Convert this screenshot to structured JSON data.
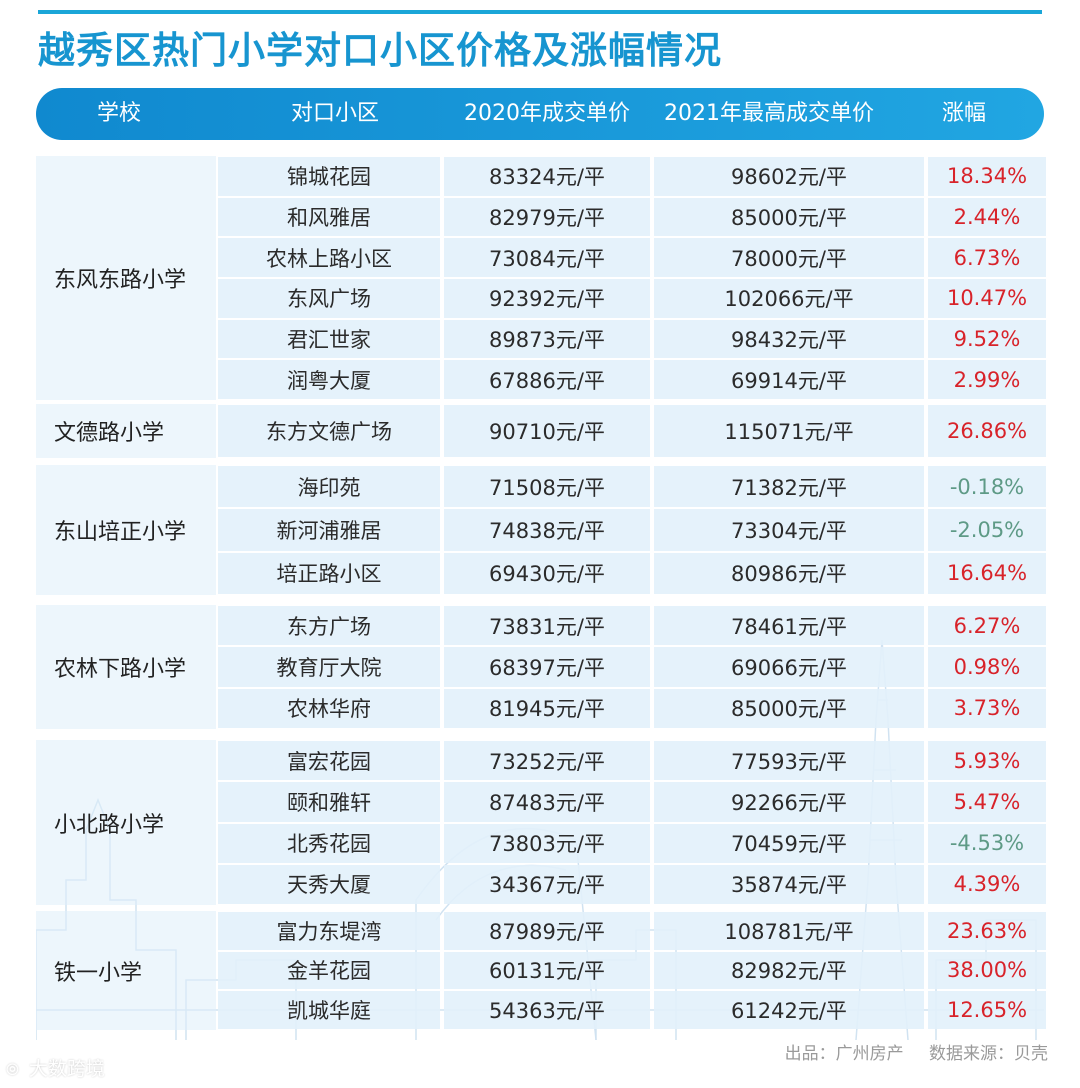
{
  "title": "越秀区热门小学对口小区价格及涨幅情况",
  "chart_data": {
    "type": "table",
    "columns": [
      "学校",
      "对口小区",
      "2020年成交单价",
      "2021年最高成交单价",
      "涨幅"
    ],
    "groups": [
      {
        "school": "东风东路小学",
        "rows": [
          {
            "estate": "锦城花园",
            "p2020": "83324元/平",
            "p2021": "98602元/平",
            "change": "18.34%"
          },
          {
            "estate": "和风雅居",
            "p2020": "82979元/平",
            "p2021": "85000元/平",
            "change": "2.44%"
          },
          {
            "estate": "农林上路小区",
            "p2020": "73084元/平",
            "p2021": "78000元/平",
            "change": "6.73%"
          },
          {
            "estate": "东风广场",
            "p2020": "92392元/平",
            "p2021": "102066元/平",
            "change": "10.47%"
          },
          {
            "estate": "君汇世家",
            "p2020": "89873元/平",
            "p2021": "98432元/平",
            "change": "9.52%"
          },
          {
            "estate": "润粤大厦",
            "p2020": "67886元/平",
            "p2021": "69914元/平",
            "change": "2.99%"
          }
        ]
      },
      {
        "school": "文德路小学",
        "rows": [
          {
            "estate": "东方文德广场",
            "p2020": "90710元/平",
            "p2021": "115071元/平",
            "change": "26.86%"
          }
        ]
      },
      {
        "school": "东山培正小学",
        "rows": [
          {
            "estate": "海印苑",
            "p2020": "71508元/平",
            "p2021": "71382元/平",
            "change": "-0.18%"
          },
          {
            "estate": "新河浦雅居",
            "p2020": "74838元/平",
            "p2021": "73304元/平",
            "change": "-2.05%"
          },
          {
            "estate": "培正路小区",
            "p2020": "69430元/平",
            "p2021": "80986元/平",
            "change": "16.64%"
          }
        ]
      },
      {
        "school": "农林下路小学",
        "rows": [
          {
            "estate": "东方广场",
            "p2020": "73831元/平",
            "p2021": "78461元/平",
            "change": "6.27%"
          },
          {
            "estate": "教育厅大院",
            "p2020": "68397元/平",
            "p2021": "69066元/平",
            "change": "0.98%"
          },
          {
            "estate": "农林华府",
            "p2020": "81945元/平",
            "p2021": "85000元/平",
            "change": "3.73%"
          }
        ]
      },
      {
        "school": "小北路小学",
        "rows": [
          {
            "estate": "富宏花园",
            "p2020": "73252元/平",
            "p2021": "77593元/平",
            "change": "5.93%"
          },
          {
            "estate": "颐和雅轩",
            "p2020": "87483元/平",
            "p2021": "92266元/平",
            "change": "5.47%"
          },
          {
            "estate": "北秀花园",
            "p2020": "73803元/平",
            "p2021": "70459元/平",
            "change": "-4.53%"
          },
          {
            "estate": "天秀大厦",
            "p2020": "34367元/平",
            "p2021": "35874元/平",
            "change": "4.39%"
          }
        ]
      },
      {
        "school": "铁一小学",
        "rows": [
          {
            "estate": "富力东堤湾",
            "p2020": "87989元/平",
            "p2021": "108781元/平",
            "change": "23.63%"
          },
          {
            "estate": "金羊花园",
            "p2020": "60131元/平",
            "p2021": "82982元/平",
            "change": "38.00%"
          },
          {
            "estate": "凯城华庭",
            "p2020": "54363元/平",
            "p2021": "61242元/平",
            "change": "12.65%"
          }
        ]
      }
    ]
  },
  "footer": {
    "publisher": "出品：广州房产",
    "source": "数据来源：贝壳"
  },
  "watermark": "大数跨境",
  "colors": {
    "accent": "#1795d0",
    "header_bg": "#1a96d8",
    "positive": "#d8232a",
    "negative": "#5e9a86",
    "cell_bg": "#e2f1fb"
  }
}
